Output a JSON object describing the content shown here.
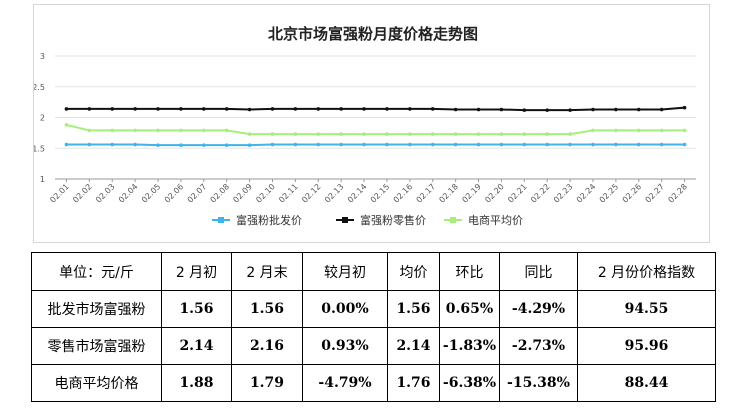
{
  "chart_data": {
    "type": "line",
    "title": "北京市场富强粉月度价格走势图",
    "x": [
      "02.01",
      "02.02",
      "02.03",
      "02.04",
      "02.05",
      "02.06",
      "02.07",
      "02.08",
      "02.09",
      "02.10",
      "02.11",
      "02.12",
      "02.13",
      "02.14",
      "02.15",
      "02.16",
      "02.17",
      "02.18",
      "02.19",
      "02.20",
      "02.21",
      "02.22",
      "02.23",
      "02.24",
      "02.25",
      "02.26",
      "02.27",
      "02.28"
    ],
    "yticks": [
      "1",
      "1.5",
      "2",
      "2.5",
      "3"
    ],
    "ylim": [
      1,
      3
    ],
    "grid": true,
    "legend_position": "bottom",
    "series": [
      {
        "name": "富强粉批发价",
        "color": "#3fb4ea",
        "values": [
          1.56,
          1.56,
          1.56,
          1.56,
          1.55,
          1.55,
          1.55,
          1.55,
          1.55,
          1.56,
          1.56,
          1.56,
          1.56,
          1.56,
          1.56,
          1.56,
          1.56,
          1.56,
          1.56,
          1.56,
          1.56,
          1.56,
          1.56,
          1.56,
          1.56,
          1.56,
          1.56,
          1.56
        ]
      },
      {
        "name": "富强粉零售价",
        "color": "#111111",
        "values": [
          2.14,
          2.14,
          2.14,
          2.14,
          2.14,
          2.14,
          2.14,
          2.14,
          2.13,
          2.14,
          2.14,
          2.14,
          2.14,
          2.14,
          2.14,
          2.14,
          2.14,
          2.13,
          2.13,
          2.13,
          2.12,
          2.12,
          2.12,
          2.13,
          2.13,
          2.13,
          2.13,
          2.16
        ]
      },
      {
        "name": "电商平均价",
        "color": "#a6ef7a",
        "values": [
          1.88,
          1.79,
          1.79,
          1.79,
          1.79,
          1.79,
          1.79,
          1.79,
          1.73,
          1.73,
          1.73,
          1.73,
          1.73,
          1.73,
          1.73,
          1.73,
          1.73,
          1.73,
          1.73,
          1.73,
          1.73,
          1.73,
          1.73,
          1.79,
          1.79,
          1.79,
          1.79,
          1.79
        ]
      }
    ]
  },
  "table": {
    "headers": [
      "单位：元/斤",
      "2 月初",
      "2 月末",
      "较月初",
      "均价",
      "环比",
      "同比",
      "2 月份价格指数"
    ],
    "rows": [
      [
        "批发市场富强粉",
        "1.56",
        "1.56",
        "0.00%",
        "1.56",
        "0.65%",
        "-4.29%",
        "94.55"
      ],
      [
        "零售市场富强粉",
        "2.14",
        "2.16",
        "0.93%",
        "2.14",
        "-1.83%",
        "-2.73%",
        "95.96"
      ],
      [
        "电商平均价格",
        "1.88",
        "1.79",
        "-4.79%",
        "1.76",
        "-6.38%",
        "-15.38%",
        "88.44"
      ]
    ]
  }
}
